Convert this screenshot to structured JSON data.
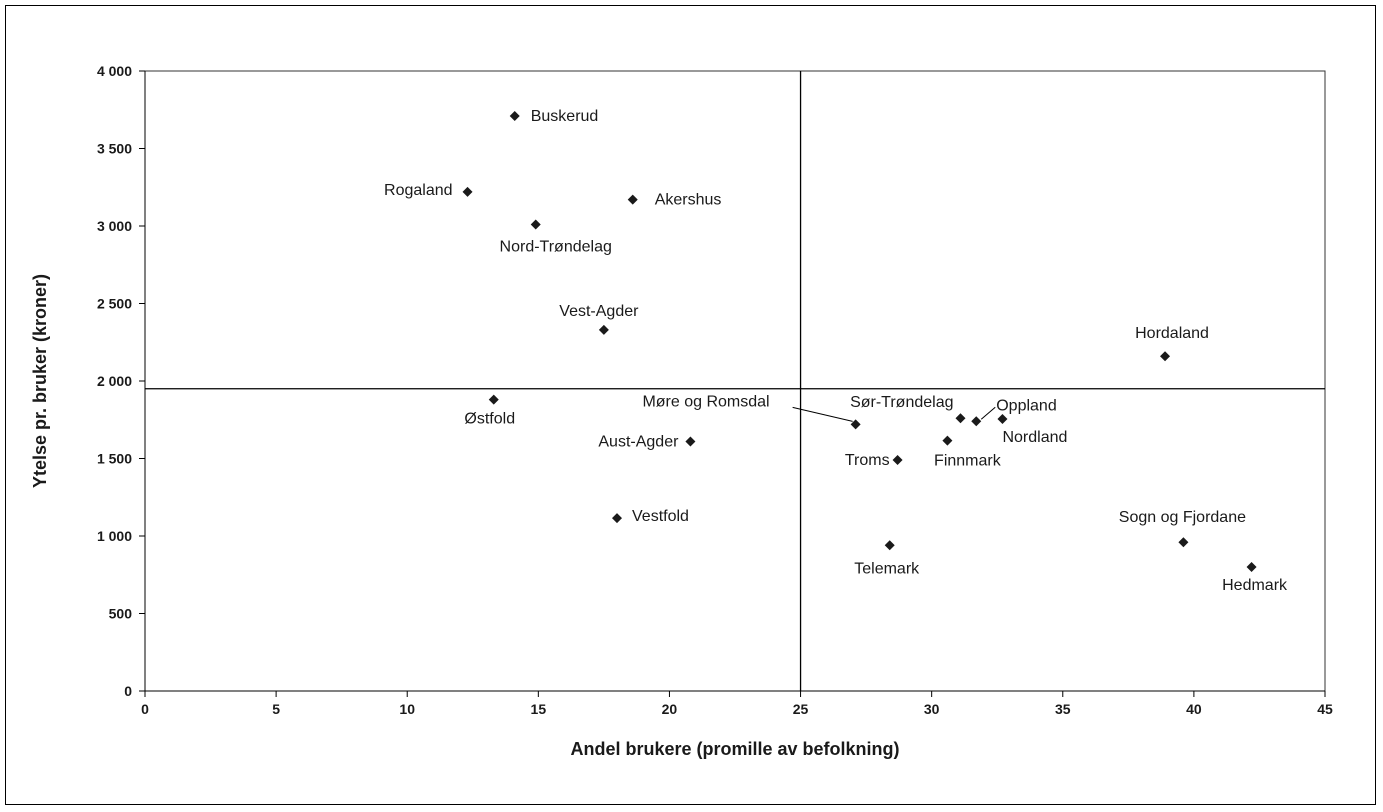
{
  "chart_data": {
    "type": "scatter",
    "xlabel": "Andel brukere (promille av befolkning)",
    "ylabel": "Ytelse pr. bruker (kroner)",
    "xlim": [
      0,
      45
    ],
    "ylim": [
      0,
      4000
    ],
    "x_ticks": [
      0,
      5,
      10,
      15,
      20,
      25,
      30,
      35,
      40,
      45
    ],
    "y_ticks": [
      0,
      500,
      1000,
      1500,
      2000,
      2500,
      3000,
      3500,
      4000
    ],
    "x_tick_labels": [
      "0",
      "5",
      "10",
      "15",
      "20",
      "25",
      "30",
      "35",
      "40",
      "45"
    ],
    "y_tick_labels": [
      "0",
      "500",
      "1 000",
      "1 500",
      "2 000",
      "2 500",
      "3 000",
      "3 500",
      "4 000"
    ],
    "grid": false,
    "reference_lines": {
      "x": 25,
      "y": 1950
    },
    "marker_color": "#1a1a1a",
    "points": [
      {
        "label": "Buskerud",
        "x": 14.1,
        "y": 3710
      },
      {
        "label": "Rogaland",
        "x": 12.3,
        "y": 3220
      },
      {
        "label": "Akershus",
        "x": 18.6,
        "y": 3170
      },
      {
        "label": "Nord-Trøndelag",
        "x": 14.9,
        "y": 3010
      },
      {
        "label": "Vest-Agder",
        "x": 17.5,
        "y": 2330
      },
      {
        "label": "Hordaland",
        "x": 38.9,
        "y": 2160
      },
      {
        "label": "Østfold",
        "x": 13.3,
        "y": 1880
      },
      {
        "label": "Møre og Romsdal",
        "x": 27.1,
        "y": 1720
      },
      {
        "label": "Sør-Trøndelag",
        "x": 31.1,
        "y": 1760
      },
      {
        "label": "Oppland",
        "x": 31.7,
        "y": 1740
      },
      {
        "label": "Nordland",
        "x": 32.7,
        "y": 1755
      },
      {
        "label": "Aust-Agder",
        "x": 20.8,
        "y": 1610
      },
      {
        "label": "Finnmark",
        "x": 30.6,
        "y": 1615
      },
      {
        "label": "Troms",
        "x": 28.7,
        "y": 1490
      },
      {
        "label": "Vestfold",
        "x": 18.0,
        "y": 1115
      },
      {
        "label": "Sogn og Fjordane",
        "x": 39.6,
        "y": 960
      },
      {
        "label": "Telemark",
        "x": 28.4,
        "y": 940
      },
      {
        "label": "Hedmark",
        "x": 42.2,
        "y": 800
      }
    ]
  }
}
